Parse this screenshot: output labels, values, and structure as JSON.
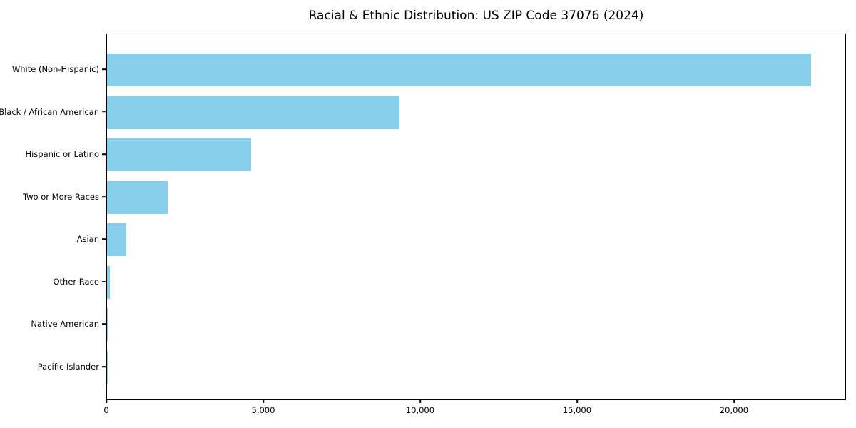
{
  "figure": {
    "background": "#ffffff",
    "text_color": "#000000"
  },
  "chart_data": {
    "type": "bar",
    "orientation": "horizontal",
    "title": "Racial & Ethnic Distribution: US ZIP Code 37076 (2024)",
    "xlabel": "",
    "ylabel": "",
    "categories": [
      "White (Non-Hispanic)",
      "Black / African American",
      "Hispanic or Latino",
      "Two or More Races",
      "Asian",
      "Other Race",
      "Native American",
      "Pacific Islander"
    ],
    "values": [
      22430,
      9320,
      4590,
      1930,
      615,
      100,
      40,
      15
    ],
    "xlim": [
      0,
      23570
    ],
    "x_ticks": [
      0,
      5000,
      10000,
      15000,
      20000
    ],
    "x_tick_labels": [
      "0",
      "5,000",
      "10,000",
      "15,000",
      "20,000"
    ],
    "bar_color": "#87CEEB",
    "grid": false,
    "legend_position": "none"
  }
}
